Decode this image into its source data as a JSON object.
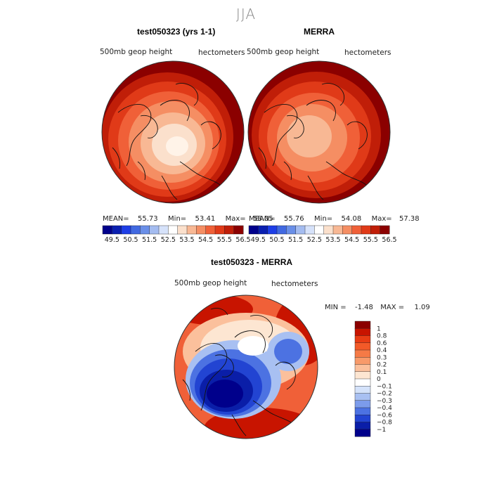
{
  "season_title": "JJA",
  "panels": [
    {
      "title": "test050323 (yrs 1-1)",
      "field_label": "500mb geop height",
      "units_label": "hectometers",
      "stats": {
        "mean_label": "MEAN=",
        "mean": "55.73",
        "min_label": "Min=",
        "min": "53.41",
        "max_label": "Max=",
        "max": "58.05"
      }
    },
    {
      "title": "MERRA",
      "field_label": "500mb geop height",
      "units_label": "hectometers",
      "stats": {
        "mean_label": "MEAN=",
        "mean": "55.76",
        "min_label": "Min=",
        "min": "54.08",
        "max_label": "Max=",
        "max": "57.38"
      }
    },
    {
      "title": "test050323 - MERRA",
      "field_label": "500mb geop height",
      "units_label": "hectometers",
      "stats": {
        "min_label": "MIN =",
        "min": "-1.48",
        "max_label": "MAX =",
        "max": "1.09"
      }
    }
  ],
  "chart_data": [
    {
      "type": "heatmap",
      "projection": "polar-stereographic",
      "title": "test050323 (yrs 1-1)",
      "variable": "500mb geop height",
      "units": "hectometers",
      "mean": 55.73,
      "min": 53.41,
      "max": 58.05,
      "colorbar": {
        "orientation": "horizontal",
        "tick_labels": [
          "49.5",
          "50.5",
          "51.5",
          "52.5",
          "53.5",
          "54.5",
          "55.5",
          "56.5"
        ],
        "colors": [
          "#00008b",
          "#0a1fb0",
          "#1e3ee6",
          "#4169e1",
          "#6a8fe8",
          "#a4bcf0",
          "#d6e2fa",
          "#ffffff",
          "#fbe0cc",
          "#f8b894",
          "#f58e63",
          "#f06038",
          "#e03a18",
          "#c01e08",
          "#8b0000"
        ]
      },
      "field_shape": "polar low centered near Greenland/Baffin, rising toward midlatitudes"
    },
    {
      "type": "heatmap",
      "projection": "polar-stereographic",
      "title": "MERRA",
      "variable": "500mb geop height",
      "units": "hectometers",
      "mean": 55.76,
      "min": 54.08,
      "max": 57.38,
      "colorbar": {
        "orientation": "horizontal",
        "tick_labels": [
          "49.5",
          "50.5",
          "51.5",
          "52.5",
          "53.5",
          "54.5",
          "55.5",
          "56.5"
        ],
        "colors": [
          "#00008b",
          "#0a1fb0",
          "#1e3ee6",
          "#4169e1",
          "#6a8fe8",
          "#a4bcf0",
          "#d6e2fa",
          "#ffffff",
          "#fbe0cc",
          "#f8b894",
          "#f58e63",
          "#f06038",
          "#e03a18",
          "#c01e08",
          "#8b0000"
        ]
      },
      "field_shape": "weaker polar low, broader midlatitude high ring"
    },
    {
      "type": "heatmap",
      "projection": "polar-stereographic",
      "title": "test050323 - MERRA",
      "variable": "500mb geop height",
      "units": "hectometers",
      "min": -1.48,
      "max": 1.09,
      "colorbar": {
        "orientation": "vertical",
        "tick_labels": [
          "1",
          "0.8",
          "0.6",
          "0.4",
          "0.3",
          "0.2",
          "0.1",
          "0",
          "−0.1",
          "−0.2",
          "−0.3",
          "−0.4",
          "−0.6",
          "−0.8",
          "−1"
        ],
        "colors": [
          "#8b0000",
          "#c81400",
          "#e83c14",
          "#f25a28",
          "#f57a46",
          "#f89a6a",
          "#fbc09c",
          "#fde6d2",
          "#ffffff",
          "#d4e2fa",
          "#a8c0f2",
          "#7c9ceb",
          "#4c72e2",
          "#2244d2",
          "#0a1ea8",
          "#00008b"
        ]
      },
      "field_shape": "negative anomaly over North America / Canada, positive bands over Europe, Pacific and Asia"
    }
  ]
}
